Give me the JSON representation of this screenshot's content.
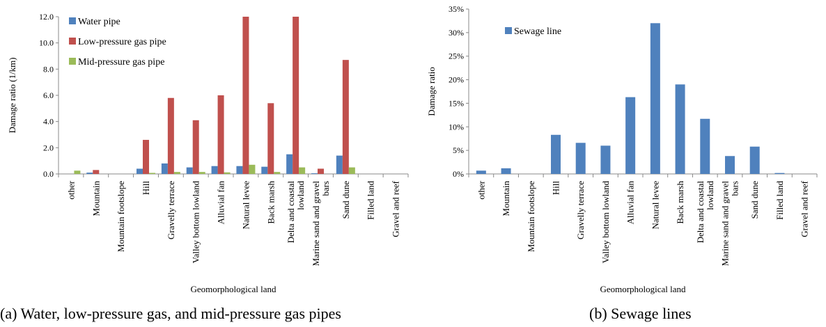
{
  "captions": {
    "left": "(a) Water, low-pressure gas, and mid-pressure gas pipes",
    "right": "(b) Sewage lines"
  },
  "chart_data": [
    {
      "type": "bar",
      "categories": [
        "other",
        "Mountain",
        "Mountain footslope",
        "Hill",
        "Gravelly terrace",
        "Valley bottom lowland",
        "Alluvial fan",
        "Natural levee",
        "Back marsh",
        "Delta and coastal lowland",
        "Marine sand and gravel bars",
        "Sand dune",
        "Filled land",
        "Gravel and reef"
      ],
      "category_lines": [
        [
          "other"
        ],
        [
          "Mountain"
        ],
        [
          "Mountain footslope"
        ],
        [
          "Hill"
        ],
        [
          "Gravelly terrace"
        ],
        [
          "Valley bottom lowland"
        ],
        [
          "Alluvial fan"
        ],
        [
          "Natural levee"
        ],
        [
          "Back marsh"
        ],
        [
          "Delta and coastal",
          "lowland"
        ],
        [
          "Marine sand and gravel",
          "bars"
        ],
        [
          "Sand dune"
        ],
        [
          "Filled land"
        ],
        [
          "Gravel and reef"
        ]
      ],
      "series": [
        {
          "name": "Water pipe",
          "color": "#4F81BD",
          "values": [
            0,
            0.1,
            0,
            0.4,
            0.8,
            0.5,
            0.6,
            0.6,
            0.55,
            1.5,
            0.05,
            1.4,
            0,
            0
          ]
        },
        {
          "name": "Low-pressure gas pipe",
          "color": "#C0504D",
          "values": [
            0,
            0.3,
            0,
            2.6,
            5.8,
            4.1,
            6.0,
            12.0,
            5.4,
            12.0,
            0.4,
            8.7,
            0,
            0
          ]
        },
        {
          "name": "Mid-pressure gas pipe",
          "color": "#9BBB59",
          "values": [
            0.25,
            0,
            0,
            0.08,
            0.15,
            0.15,
            0.12,
            0.7,
            0.15,
            0.5,
            0,
            0.5,
            0,
            0
          ]
        }
      ],
      "xlabel": "Geomorphological land",
      "ylabel": "Damage ratio (1/km)",
      "ylim": [
        0,
        12
      ],
      "yticks": [
        "0.0",
        "2.0",
        "4.0",
        "6.0",
        "8.0",
        "10.0",
        "12.0"
      ],
      "legend": "top-left",
      "grid": false
    },
    {
      "type": "bar",
      "categories": [
        "other",
        "Mountain",
        "Mountain footslope",
        "Hill",
        "Gravelly terrace",
        "Valley bottom lowland",
        "Alluvial fan",
        "Natural levee",
        "Back marsh",
        "Delta and coastal lowland",
        "Marine sand and gravel bars",
        "Sand dune",
        "Filled land",
        "Gravel and reef"
      ],
      "category_lines": [
        [
          "other"
        ],
        [
          "Mountain"
        ],
        [
          "Mountain footslope"
        ],
        [
          "Hill"
        ],
        [
          "Gravelly terrace"
        ],
        [
          "Valley bottom lowland"
        ],
        [
          "Alluvial fan"
        ],
        [
          "Natural levee"
        ],
        [
          "Back marsh"
        ],
        [
          "Delta and coastal",
          "lowland"
        ],
        [
          "Marine sand and gravel",
          "bars"
        ],
        [
          "Sand dune"
        ],
        [
          "Filled land"
        ],
        [
          "Gravel and reef"
        ]
      ],
      "series": [
        {
          "name": "Sewage line",
          "color": "#4F81BD",
          "values": [
            0.7,
            1.2,
            0,
            8.3,
            6.6,
            6.0,
            16.3,
            32.0,
            19.0,
            11.7,
            3.8,
            5.8,
            0.2,
            0
          ]
        }
      ],
      "xlabel": "Geomorphological land",
      "ylabel": "Damage ratio",
      "ylim": [
        0,
        35
      ],
      "yticks": [
        "0%",
        "5%",
        "10%",
        "15%",
        "20%",
        "25%",
        "30%",
        "35%"
      ],
      "legend": "top-left",
      "grid": false
    }
  ]
}
